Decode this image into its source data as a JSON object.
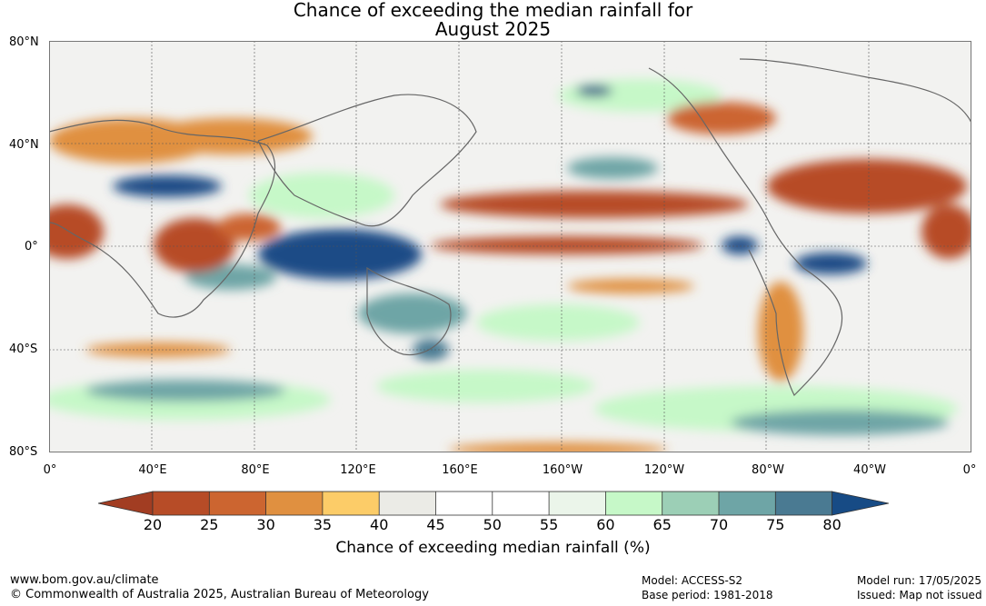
{
  "title": {
    "line1": "Chance of exceeding the median rainfall for",
    "line2": "August 2025"
  },
  "map": {
    "lat_labels": [
      "80°N",
      "40°N",
      "0°",
      "40°S",
      "80°S"
    ],
    "lon_labels": [
      "0°",
      "40°E",
      "80°E",
      "120°E",
      "160°E",
      "160°W",
      "120°W",
      "80°W",
      "40°W",
      "0°"
    ]
  },
  "colorbar": {
    "ticks": [
      "20",
      "25",
      "30",
      "35",
      "40",
      "45",
      "50",
      "55",
      "60",
      "65",
      "70",
      "75",
      "80"
    ],
    "colors": [
      "#a23d22",
      "#b74c27",
      "#cc6530",
      "#e09040",
      "#fccc68",
      "#ebebe6",
      "#ffffff",
      "#ffffff",
      "#ebf5ea",
      "#c6f8c8",
      "#9ccfb6",
      "#6ea5a6",
      "#4a7a92",
      "#1a4c86",
      "#174b85"
    ],
    "title": "Chance of exceeding median rainfall (%)"
  },
  "footer": {
    "url": "www.bom.gov.au/climate",
    "copyright": "© Commonwealth of Australia 2025, Australian Bureau of Meteorology",
    "model": "Model: ACCESS-S2",
    "base_period": "Base period: 1981-2018",
    "model_run": "Model run: 17/05/2025",
    "issued": "Issued: Map not issued"
  }
}
